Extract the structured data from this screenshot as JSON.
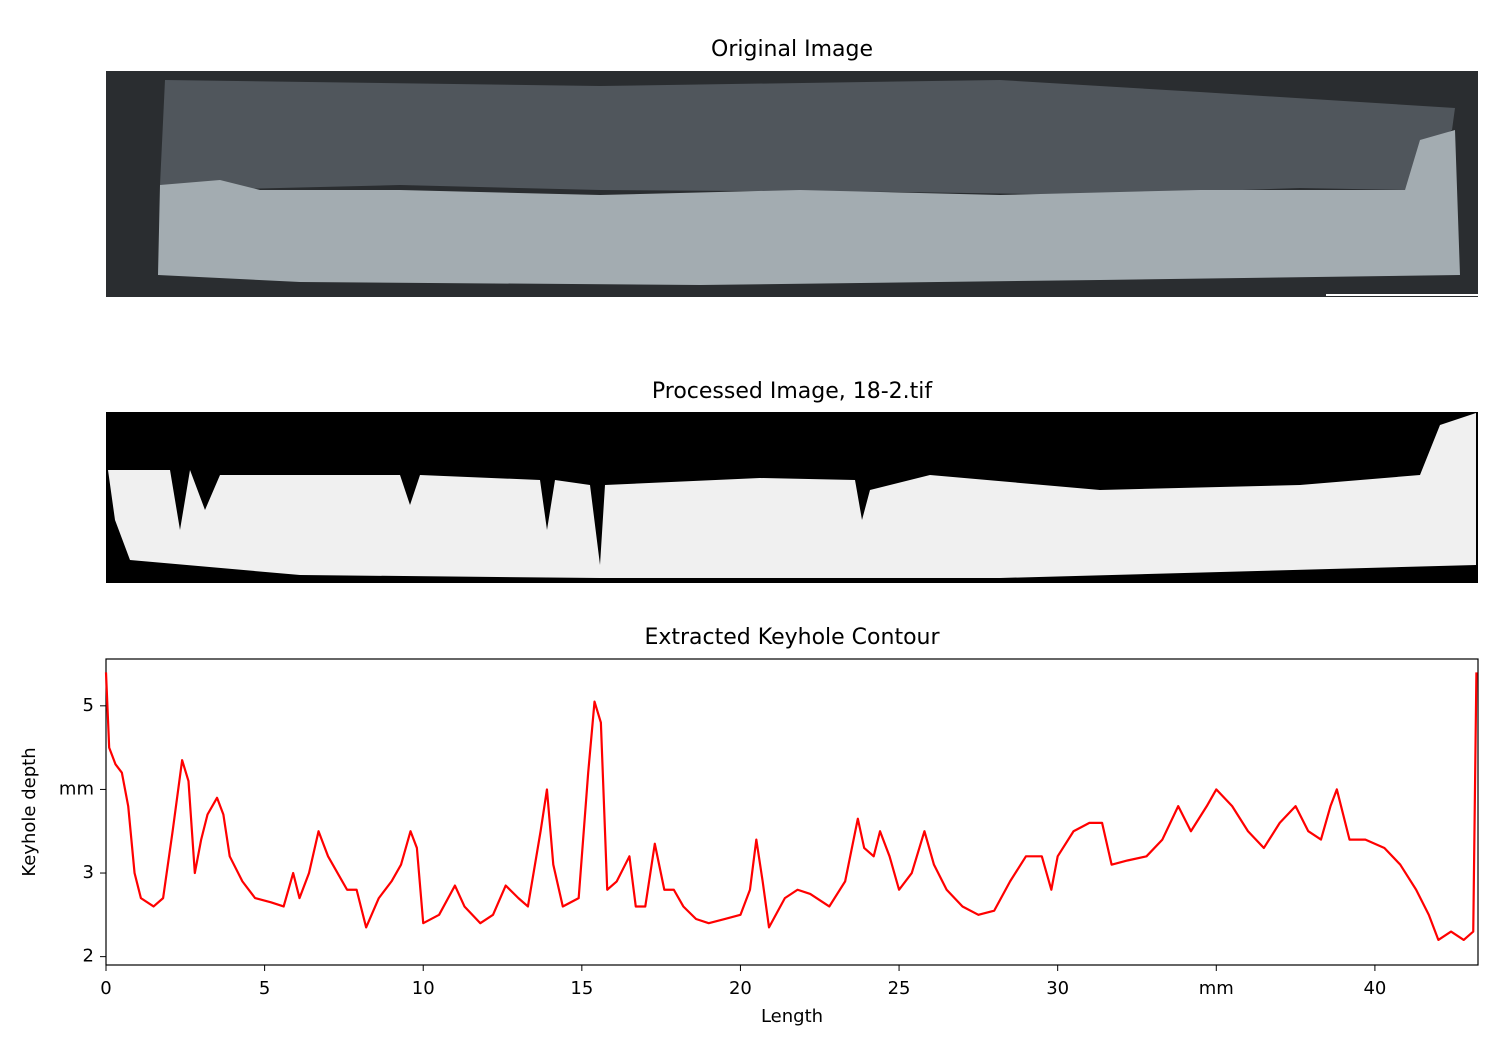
{
  "chart_data": [
    {
      "type": "image",
      "title": "Original Image"
    },
    {
      "type": "image",
      "title": "Processed Image, 18-2.tif"
    },
    {
      "type": "line",
      "title": "Extracted Keyhole Contour",
      "x_label": "Length",
      "y_label": "Keyhole depth",
      "xlim": [
        0,
        43.25
      ],
      "ylim": [
        1.9,
        5.56
      ],
      "xticks": [
        0,
        5,
        10,
        15,
        20,
        25,
        30,
        {
          "value": 35,
          "label": "mm"
        },
        40
      ],
      "yticks": [
        2,
        3,
        {
          "value": 4,
          "label": "mm"
        },
        5
      ],
      "series": [
        {
          "color": "#ff0000",
          "x": [
            0,
            0.1,
            0.3,
            0.5,
            0.7,
            0.9,
            1.1,
            1.5,
            1.8,
            2.1,
            2.4,
            2.6,
            2.8,
            3.0,
            3.2,
            3.5,
            3.7,
            3.9,
            4.3,
            4.7,
            5.2,
            5.6,
            5.9,
            6.1,
            6.4,
            6.7,
            7.0,
            7.3,
            7.6,
            7.9,
            8.2,
            8.6,
            9.0,
            9.3,
            9.6,
            9.8,
            10.0,
            10.5,
            11.0,
            11.3,
            11.8,
            12.2,
            12.6,
            13.0,
            13.3,
            13.7,
            13.9,
            14.1,
            14.4,
            14.9,
            15.2,
            15.4,
            15.6,
            15.8,
            16.1,
            16.5,
            16.7,
            17.0,
            17.3,
            17.6,
            17.9,
            18.2,
            18.6,
            19.0,
            19.5,
            20.0,
            20.3,
            20.5,
            20.7,
            20.9,
            21.4,
            21.8,
            22.2,
            22.8,
            23.3,
            23.7,
            23.9,
            24.2,
            24.4,
            24.7,
            25.0,
            25.4,
            25.8,
            26.1,
            26.5,
            27.0,
            27.5,
            28.0,
            28.5,
            29.0,
            29.5,
            29.8,
            30.0,
            30.5,
            31.0,
            31.4,
            31.7,
            32.2,
            32.8,
            33.3,
            33.8,
            34.2,
            34.7,
            35.0,
            35.5,
            36.0,
            36.5,
            37.0,
            37.5,
            37.9,
            38.3,
            38.6,
            38.8,
            39.2,
            39.7,
            40.3,
            40.8,
            41.3,
            41.7,
            42.0,
            42.4,
            42.8,
            43.1,
            43.2
          ],
          "values": [
            5.4,
            4.5,
            4.3,
            4.2,
            3.8,
            3.0,
            2.7,
            2.6,
            2.7,
            3.5,
            4.35,
            4.1,
            3.0,
            3.4,
            3.7,
            3.9,
            3.7,
            3.2,
            2.9,
            2.7,
            2.65,
            2.6,
            3.0,
            2.7,
            3.0,
            3.5,
            3.2,
            3.0,
            2.8,
            2.8,
            2.35,
            2.7,
            2.9,
            3.1,
            3.5,
            3.3,
            2.4,
            2.5,
            2.85,
            2.6,
            2.4,
            2.5,
            2.85,
            2.7,
            2.6,
            3.5,
            4.0,
            3.1,
            2.6,
            2.7,
            4.2,
            5.05,
            4.8,
            2.8,
            2.9,
            3.2,
            2.6,
            2.6,
            3.35,
            2.8,
            2.8,
            2.6,
            2.45,
            2.4,
            2.45,
            2.5,
            2.8,
            3.4,
            2.9,
            2.35,
            2.7,
            2.8,
            2.75,
            2.6,
            2.9,
            3.65,
            3.3,
            3.2,
            3.5,
            3.2,
            2.8,
            3.0,
            3.5,
            3.1,
            2.8,
            2.6,
            2.5,
            2.55,
            2.9,
            3.2,
            3.2,
            2.8,
            3.2,
            3.5,
            3.6,
            3.6,
            3.1,
            3.15,
            3.2,
            3.4,
            3.8,
            3.5,
            3.8,
            4.0,
            3.8,
            3.5,
            3.3,
            3.6,
            3.8,
            3.5,
            3.4,
            3.8,
            4.0,
            3.4,
            3.4,
            3.3,
            3.1,
            2.8,
            2.5,
            2.2,
            2.3,
            2.2,
            2.3,
            5.4
          ]
        }
      ]
    }
  ]
}
